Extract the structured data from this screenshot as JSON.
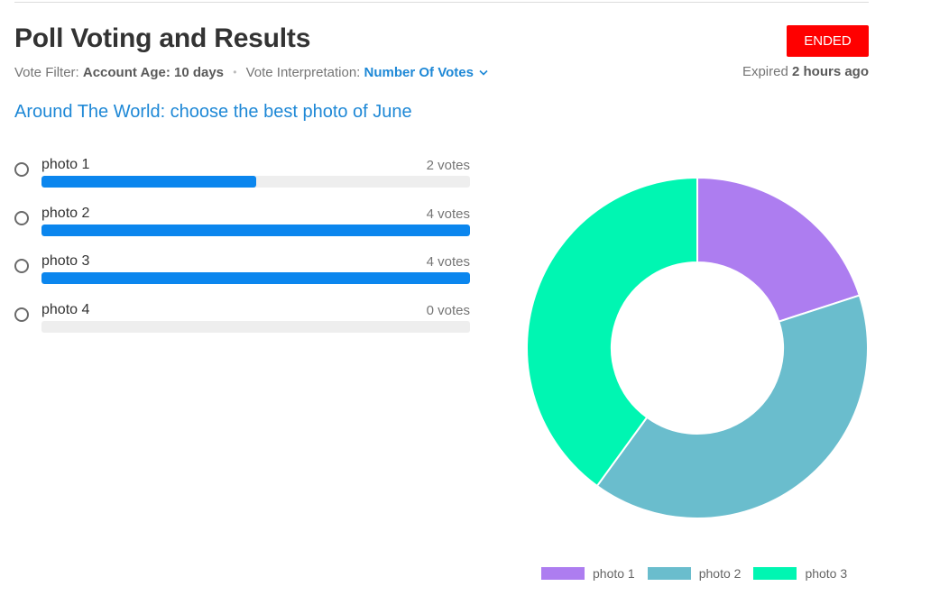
{
  "header": {
    "title": "Poll Voting and Results",
    "status": "ENDED",
    "status_color": "#ff0000"
  },
  "meta": {
    "filter_label": "Vote Filter:",
    "filter_value": "Account Age: 10 days",
    "interpretation_label": "Vote Interpretation:",
    "interpretation_value": "Number Of Votes",
    "expiry_prefix": "Expired",
    "expiry_value": "2 hours ago"
  },
  "poll": {
    "question": "Around The World: choose the best photo of June",
    "options": [
      {
        "label": "photo 1",
        "votes_text": "2 votes",
        "votes": 2,
        "fill_fraction": 0.5
      },
      {
        "label": "photo 2",
        "votes_text": "4 votes",
        "votes": 4,
        "fill_fraction": 1.0
      },
      {
        "label": "photo 3",
        "votes_text": "4 votes",
        "votes": 4,
        "fill_fraction": 1.0
      },
      {
        "label": "photo 4",
        "votes_text": "0 votes",
        "votes": 0,
        "fill_fraction": 0.0
      }
    ]
  },
  "colors": {
    "accent": "#1e88d6",
    "bar_fill": "#0b86ee",
    "bar_track": "#eeeeee"
  },
  "chart_data": {
    "type": "pie",
    "categories": [
      "photo 1",
      "photo 2",
      "photo 3"
    ],
    "values": [
      2,
      4,
      4
    ],
    "colors": [
      "#ad7df0",
      "#6abdcd",
      "#00f6b2"
    ],
    "legend_position": "bottom"
  },
  "icons": {
    "interpretation_dropdown": "chevron-down-icon",
    "option_selector": "radio-icon"
  }
}
